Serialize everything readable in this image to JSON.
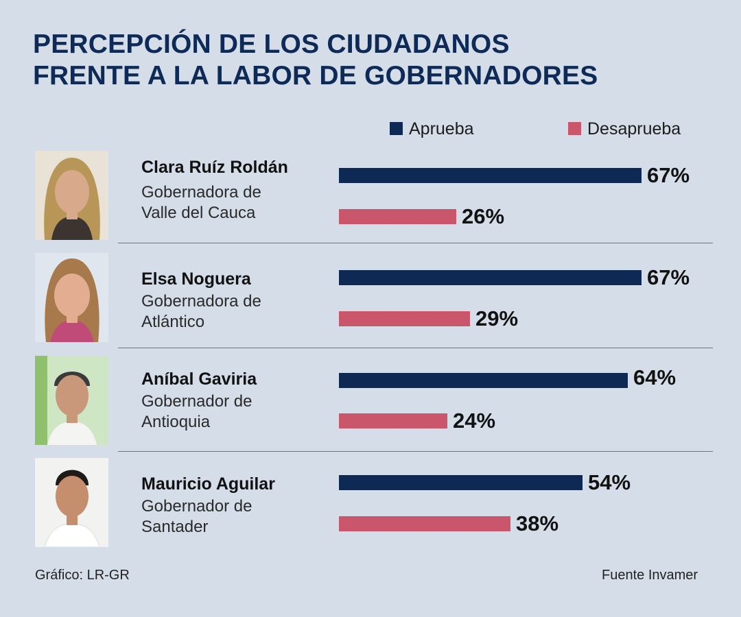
{
  "title": [
    "PERCEPCIÓN DE LOS CIUDADANOS",
    "FRENTE A LA LABOR DE GOBERNADORES"
  ],
  "colors": {
    "approve": "#0d2954",
    "disapprove": "#c9566a",
    "title": "#0e2a57",
    "background": "#d5dde8"
  },
  "legend": {
    "approve": "Aprueba",
    "disapprove": "Desaprueba"
  },
  "chart_data": {
    "type": "bar",
    "title": "PERCEPCIÓN DE LOS CIUDADANOS FRENTE A LA LABOR DE GOBERNADORES",
    "categories": [
      "Clara Ruíz Roldán",
      "Elsa Noguera",
      "Aníbal Gaviria",
      "Mauricio Aguilar"
    ],
    "series": [
      {
        "name": "Aprueba",
        "values": [
          67,
          67,
          64,
          54
        ]
      },
      {
        "name": "Desaprueba",
        "values": [
          26,
          29,
          24,
          38
        ]
      }
    ],
    "unit": "%",
    "ylim": [
      0,
      67
    ]
  },
  "governors": [
    {
      "name": "Clara Ruíz Roldán",
      "role_line1": "Gobernadora de",
      "role_line2": "Valle del Cauca",
      "approve_label": "67%",
      "disapprove_label": "26%"
    },
    {
      "name": "Elsa Noguera",
      "role_line1": "Gobernadora de",
      "role_line2": "Atlántico",
      "approve_label": "67%",
      "disapprove_label": "29%"
    },
    {
      "name": "Aníbal Gaviria",
      "role_line1": "Gobernador de",
      "role_line2": "Antioquia",
      "approve_label": "64%",
      "disapprove_label": "24%"
    },
    {
      "name": "Mauricio Aguilar",
      "role_line1": "Gobernador de",
      "role_line2": "Santader",
      "approve_label": "54%",
      "disapprove_label": "38%"
    }
  ],
  "footer": {
    "credit": "Gráfico: LR-GR",
    "source": "Fuente Invamer"
  }
}
